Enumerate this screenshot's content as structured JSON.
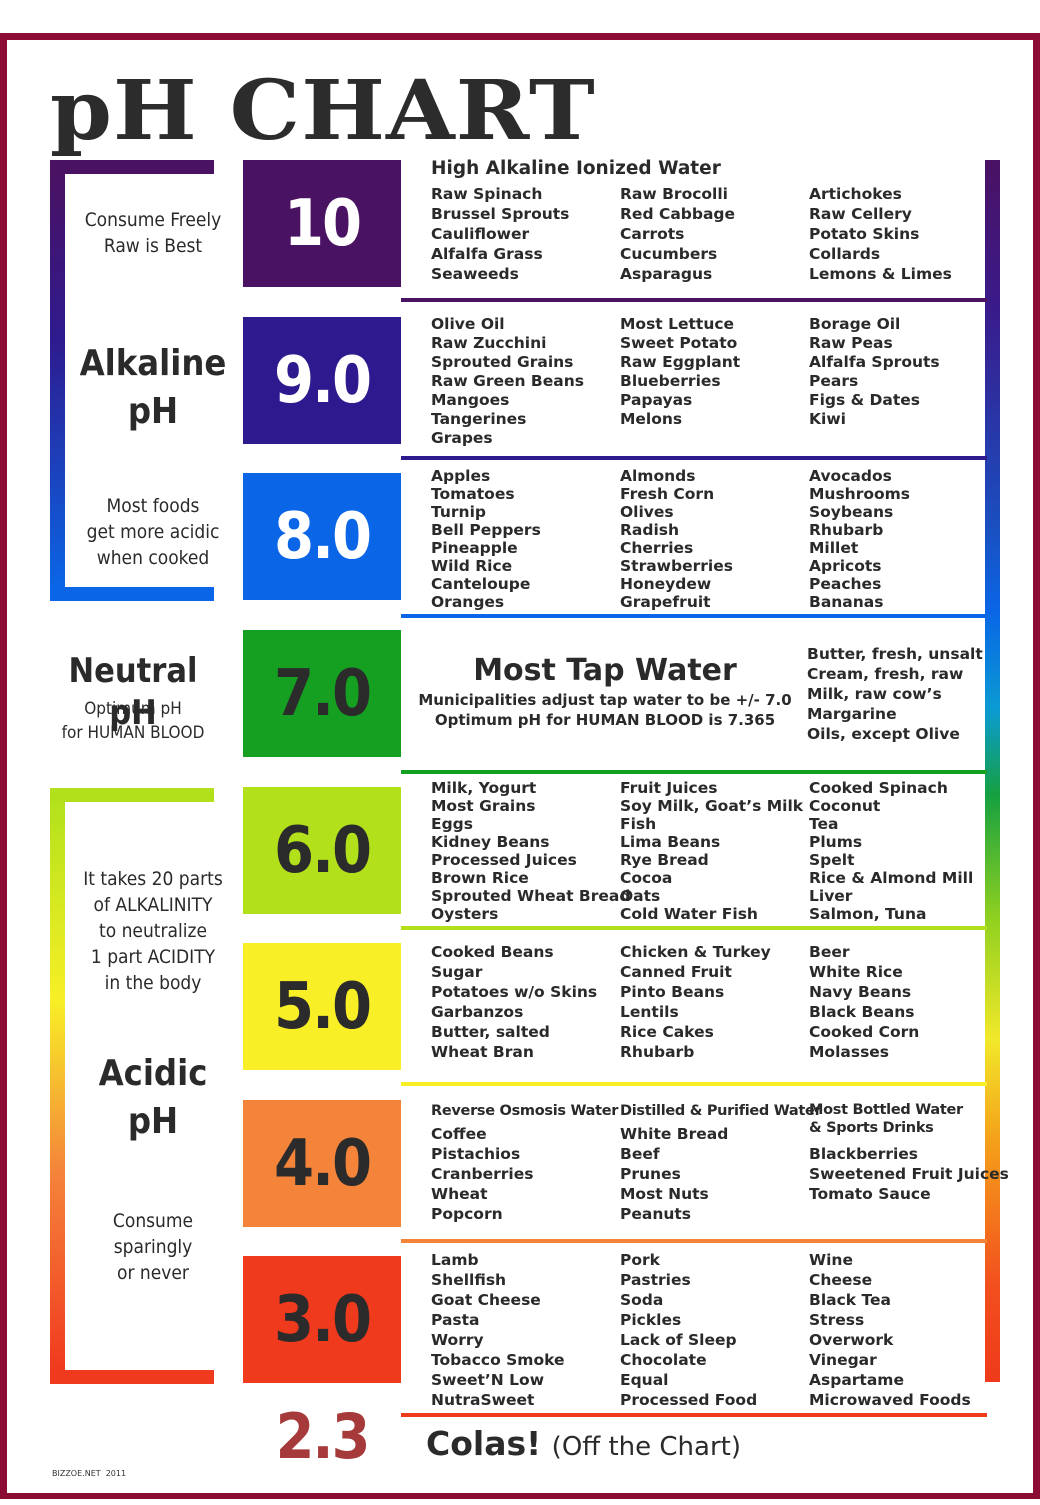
{
  "title": "pH CHART",
  "side": {
    "consume_freely": [
      "Consume Freely",
      "Raw is Best"
    ],
    "alkaline": [
      "Alkaline",
      "pH"
    ],
    "most_foods": [
      "Most  foods",
      "get more acidic",
      "when cooked"
    ],
    "neutral": "Neutral pH",
    "optimum": [
      "Optimum pH",
      "for HUMAN BLOOD"
    ],
    "twenty_parts": [
      "It takes 20 parts",
      "of ALKALINITY",
      "to neutralize",
      "1 part ACIDITY",
      "in the body"
    ],
    "acidic": [
      "Acidic",
      "pH"
    ],
    "consume_sparingly": [
      "Consume",
      "sparingly",
      "or never"
    ]
  },
  "colors": {
    "frame": "#8b0d34",
    "ph10": "#4a1263",
    "ph9": "#2e1a8e",
    "ph8": "#0a66e6",
    "ph7": "#16a021",
    "ph6": "#b2e11b",
    "ph5": "#f8ef26",
    "ph4": "#f4843a",
    "ph3": "#f03a1e",
    "ph23": "#a63a3a"
  },
  "levels": [
    {
      "ph": "10",
      "header": "High Alkaline Ionized Water",
      "columns": [
        [
          "Raw Spinach",
          "Brussel Sprouts",
          "Cauliflower",
          "Alfalfa Grass",
          "Seaweeds"
        ],
        [
          "Raw Brocolli",
          "Red Cabbage",
          "Carrots",
          "Cucumbers",
          "Asparagus"
        ],
        [
          "Artichokes",
          "Raw Cellery",
          "Potato Skins",
          "Collards",
          "Lemons & Limes"
        ]
      ]
    },
    {
      "ph": "9.0",
      "columns": [
        [
          "Olive Oil",
          "Raw Zucchini",
          "Sprouted Grains",
          "Raw Green Beans",
          "Mangoes",
          "Tangerines",
          "Grapes"
        ],
        [
          "Most Lettuce",
          "Sweet Potato",
          "Raw Eggplant",
          "Blueberries",
          "Papayas",
          "Melons"
        ],
        [
          "Borage Oil",
          "Raw Peas",
          "Alfalfa Sprouts",
          "Pears",
          "Figs & Dates",
          "Kiwi"
        ]
      ]
    },
    {
      "ph": "8.0",
      "columns": [
        [
          "Apples",
          "Tomatoes",
          "Turnip",
          "Bell Peppers",
          "Pineapple",
          "Wild Rice",
          "Canteloupe",
          "Oranges"
        ],
        [
          "Almonds",
          "Fresh Corn",
          "Olives",
          "Radish",
          "Cherries",
          "Strawberries",
          "Honeydew",
          "Grapefruit"
        ],
        [
          "Avocados",
          "Mushrooms",
          "Soybeans",
          "Rhubarb",
          "Millet",
          "Apricots",
          "Peaches",
          "Bananas"
        ]
      ]
    },
    {
      "ph": "7.0",
      "tap_title": "Most Tap Water",
      "tap_lines": [
        "Municipalities adjust tap water to be +/- 7.0",
        "Optimum pH for HUMAN BLOOD is 7.365"
      ],
      "columns": [
        [
          "Butter, fresh, unsalt",
          "Cream, fresh, raw",
          "Milk, raw cow’s",
          "Margarine",
          "Oils, except Olive"
        ]
      ]
    },
    {
      "ph": "6.0",
      "columns": [
        [
          "Milk, Yogurt",
          "Most Grains",
          "Eggs",
          "Kidney Beans",
          "Processed Juices",
          "Brown Rice",
          "Sprouted Wheat Bread",
          "Oysters"
        ],
        [
          "Fruit Juices",
          "Soy Milk, Goat’s Milk",
          "Fish",
          "Lima Beans",
          "Rye Bread",
          "Cocoa",
          "Oats",
          "Cold Water Fish"
        ],
        [
          "Cooked Spinach",
          "Coconut",
          "Tea",
          "Plums",
          "Spelt",
          "Rice & Almond Mill",
          "Liver",
          "Salmon, Tuna"
        ]
      ]
    },
    {
      "ph": "5.0",
      "columns": [
        [
          "Cooked Beans",
          "Sugar",
          "Potatoes w/o Skins",
          "Garbanzos",
          "Butter, salted",
          "Wheat Bran"
        ],
        [
          "Chicken & Turkey",
          "Canned Fruit",
          "Pinto Beans",
          "Lentils",
          "Rice Cakes",
          "Rhubarb"
        ],
        [
          "Beer",
          "White Rice",
          "Navy Beans",
          "Black Beans",
          "Cooked Corn",
          "Molasses"
        ]
      ]
    },
    {
      "ph": "4.0",
      "col_headers": [
        "Reverse Osmosis Water",
        "Distilled & Purified Water",
        "Most Bottled Water",
        "& Sports Drinks"
      ],
      "columns": [
        [
          "Coffee",
          "Pistachios",
          "Cranberries",
          "Wheat",
          "Popcorn"
        ],
        [
          "White Bread",
          "Beef",
          "Prunes",
          "Most Nuts",
          "Peanuts"
        ],
        [
          "Blackberries",
          "Sweetened Fruit Juices",
          "Tomato Sauce"
        ]
      ]
    },
    {
      "ph": "3.0",
      "columns": [
        [
          "Lamb",
          "Shellfish",
          "Goat Cheese",
          "Pasta",
          "Worry",
          "Tobacco Smoke",
          "Sweet’N Low",
          "NutraSweet"
        ],
        [
          "Pork",
          "Pastries",
          "Soda",
          "Pickles",
          "Lack of Sleep",
          "Chocolate",
          "Equal",
          "Processed Food"
        ],
        [
          "Wine",
          "Cheese",
          "Black Tea",
          "Stress",
          "Overwork",
          "Vinegar",
          "Aspartame",
          "Microwaved Foods"
        ]
      ]
    }
  ],
  "bottom": {
    "ph": "2.3",
    "colas": "Colas!",
    "off_chart": "(Off the Chart)"
  },
  "credit": "BIZZOE.NET  2011"
}
